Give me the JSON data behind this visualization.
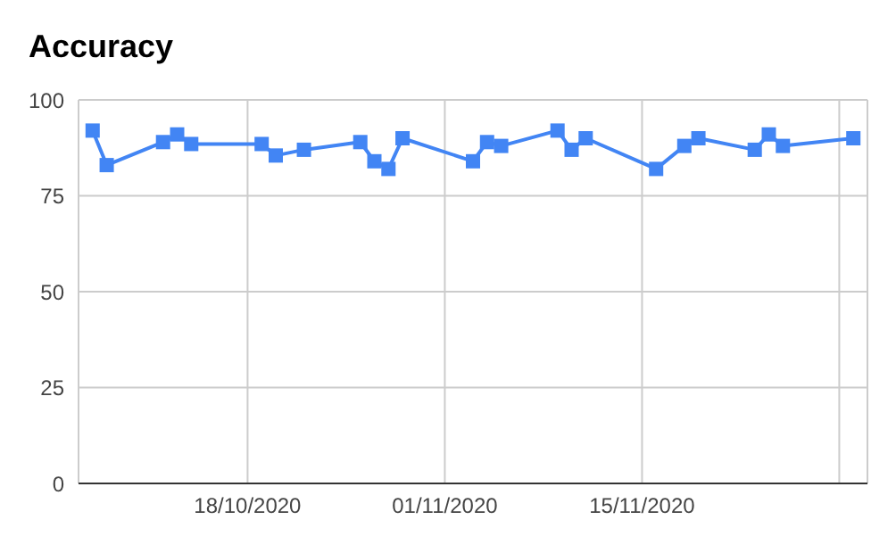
{
  "chart_data": {
    "type": "line",
    "title": "Accuracy",
    "x": [
      "2020-10-07",
      "2020-10-08",
      "2020-10-12",
      "2020-10-13",
      "2020-10-14",
      "2020-10-19",
      "2020-10-20",
      "2020-10-22",
      "2020-10-26",
      "2020-10-27",
      "2020-10-28",
      "2020-10-29",
      "2020-11-03",
      "2020-11-04",
      "2020-11-05",
      "2020-11-09",
      "2020-11-10",
      "2020-11-11",
      "2020-11-16",
      "2020-11-18",
      "2020-11-19",
      "2020-11-23",
      "2020-11-24",
      "2020-11-25",
      "2020-11-30"
    ],
    "series": [
      {
        "color": "#4285f4",
        "values": [
          92,
          83,
          89,
          91,
          88.5,
          88.5,
          85.5,
          87,
          89,
          84,
          82,
          90,
          84,
          89,
          88,
          92,
          87,
          90,
          82,
          88,
          90,
          87,
          91,
          88,
          90
        ]
      }
    ],
    "xlim": [
      "2020-10-06",
      "2020-12-01"
    ],
    "xticks": [
      {
        "value": "2020-10-18",
        "label": "18/10/2020"
      },
      {
        "value": "2020-11-01",
        "label": "01/11/2020"
      },
      {
        "value": "2020-11-15",
        "label": "15/11/2020"
      },
      {
        "value": "2020-11-29",
        "label": null
      }
    ],
    "ylim": [
      0,
      100
    ],
    "yticks": [
      0,
      25,
      50,
      75,
      100
    ],
    "grid": true,
    "marker": "square",
    "line_style": "solid"
  }
}
